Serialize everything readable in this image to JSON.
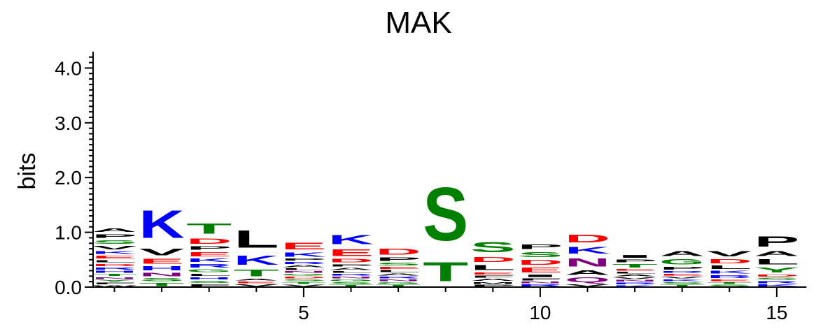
{
  "chart_data": {
    "type": "sequence-logo",
    "title": "MAK",
    "ylabel": "bits",
    "xlabel": "",
    "ylim": [
      0,
      4.3
    ],
    "y_ticks": [
      {
        "value": 0.0,
        "label": "0.0"
      },
      {
        "value": 1.0,
        "label": "1.0"
      },
      {
        "value": 2.0,
        "label": "2.0"
      },
      {
        "value": 3.0,
        "label": "3.0"
      },
      {
        "value": 4.0,
        "label": "4.0"
      }
    ],
    "x_ticks": [
      {
        "value": 5,
        "label": "5"
      },
      {
        "value": 10,
        "label": "10"
      },
      {
        "value": 15,
        "label": "15"
      }
    ],
    "colors": {
      "A": "#000000",
      "C": "#008000",
      "D": "#ff0000",
      "E": "#ff0000",
      "F": "#000000",
      "G": "#008000",
      "H": "#0000ff",
      "I": "#000000",
      "K": "#0000ff",
      "L": "#000000",
      "M": "#000000",
      "N": "#800080",
      "P": "#000000",
      "Q": "#800080",
      "R": "#0000ff",
      "S": "#008000",
      "T": "#008000",
      "V": "#000000",
      "W": "#000000",
      "Y": "#008000"
    },
    "positions": [
      {
        "pos": 1,
        "stack": [
          [
            "W",
            0.04
          ],
          [
            "F",
            0.05
          ],
          [
            "Y",
            0.05
          ],
          [
            "N",
            0.05
          ],
          [
            "T",
            0.06
          ],
          [
            "H",
            0.06
          ],
          [
            "R",
            0.06
          ],
          [
            "D",
            0.07
          ],
          [
            "L",
            0.07
          ],
          [
            "E",
            0.08
          ],
          [
            "K",
            0.08
          ],
          [
            "V",
            0.1
          ],
          [
            "S",
            0.11
          ],
          [
            "P",
            0.11
          ],
          [
            "A",
            0.1
          ]
        ]
      },
      {
        "pos": 2,
        "stack": [
          [
            "T",
            0.09
          ],
          [
            "S",
            0.09
          ],
          [
            "N",
            0.1
          ],
          [
            "H",
            0.12
          ],
          [
            "E",
            0.14
          ],
          [
            "V",
            0.2
          ],
          [
            "K",
            0.81
          ]
        ]
      },
      {
        "pos": 3,
        "stack": [
          [
            "F",
            0.06
          ],
          [
            "S",
            0.07
          ],
          [
            "H",
            0.06
          ],
          [
            "L",
            0.07
          ],
          [
            "G",
            0.08
          ],
          [
            "R",
            0.1
          ],
          [
            "K",
            0.1
          ],
          [
            "E",
            0.12
          ],
          [
            "P",
            0.1
          ],
          [
            "D",
            0.16
          ],
          [
            "T",
            0.3
          ]
        ]
      },
      {
        "pos": 4,
        "stack": [
          [
            "V",
            0.06
          ],
          [
            "E",
            0.05
          ],
          [
            "A",
            0.05
          ],
          [
            "T",
            0.2
          ],
          [
            "K",
            0.26
          ],
          [
            "L",
            0.5
          ]
        ]
      },
      {
        "pos": 5,
        "stack": [
          [
            "V",
            0.05
          ],
          [
            "T",
            0.05
          ],
          [
            "S",
            0.05
          ],
          [
            "D",
            0.05
          ],
          [
            "G",
            0.05
          ],
          [
            "N",
            0.05
          ],
          [
            "L",
            0.05
          ],
          [
            "A",
            0.06
          ],
          [
            "R",
            0.06
          ],
          [
            "P",
            0.06
          ],
          [
            "K",
            0.12
          ],
          [
            "E",
            0.2
          ]
        ]
      },
      {
        "pos": 6,
        "stack": [
          [
            "T",
            0.05
          ],
          [
            "S",
            0.05
          ],
          [
            "G",
            0.05
          ],
          [
            "N",
            0.05
          ],
          [
            "R",
            0.05
          ],
          [
            "L",
            0.05
          ],
          [
            "A",
            0.06
          ],
          [
            "P",
            0.07
          ],
          [
            "D",
            0.1
          ],
          [
            "E",
            0.2
          ],
          [
            "K",
            0.27
          ]
        ]
      },
      {
        "pos": 7,
        "stack": [
          [
            "T",
            0.05
          ],
          [
            "G",
            0.05
          ],
          [
            "N",
            0.05
          ],
          [
            "R",
            0.05
          ],
          [
            "A",
            0.06
          ],
          [
            "L",
            0.06
          ],
          [
            "E",
            0.06
          ],
          [
            "S",
            0.08
          ],
          [
            "P",
            0.1
          ],
          [
            "D",
            0.17
          ]
        ]
      },
      {
        "pos": 8,
        "stack": [
          [
            "T",
            0.55
          ],
          [
            "S",
            1.55
          ]
        ]
      },
      {
        "pos": 9,
        "stack": [
          [
            "P",
            0.05
          ],
          [
            "M",
            0.05
          ],
          [
            "A",
            0.06
          ],
          [
            "F",
            0.06
          ],
          [
            "E",
            0.06
          ],
          [
            "L",
            0.15
          ],
          [
            "D",
            0.15
          ],
          [
            "S",
            0.31
          ]
        ]
      },
      {
        "pos": 10,
        "stack": [
          [
            "R",
            0.06
          ],
          [
            "N",
            0.05
          ],
          [
            "F",
            0.06
          ],
          [
            "I",
            0.07
          ],
          [
            "E",
            0.14
          ],
          [
            "D",
            0.14
          ],
          [
            "S",
            0.15
          ],
          [
            "P",
            0.13
          ]
        ]
      },
      {
        "pos": 11,
        "stack": [
          [
            "V",
            0.06
          ],
          [
            "Q",
            0.14
          ],
          [
            "A",
            0.13
          ],
          [
            "N",
            0.24
          ],
          [
            "K",
            0.2
          ],
          [
            "D",
            0.23
          ]
        ]
      },
      {
        "pos": 12,
        "stack": [
          [
            "K",
            0.04
          ],
          [
            "R",
            0.05
          ],
          [
            "N",
            0.05
          ],
          [
            "V",
            0.05
          ],
          [
            "A",
            0.05
          ],
          [
            "L",
            0.05
          ],
          [
            "E",
            0.05
          ],
          [
            "T",
            0.1
          ],
          [
            "P",
            0.08
          ],
          [
            "I",
            0.08
          ]
        ]
      },
      {
        "pos": 13,
        "stack": [
          [
            "T",
            0.05
          ],
          [
            "S",
            0.05
          ],
          [
            "K",
            0.05
          ],
          [
            "V",
            0.05
          ],
          [
            "E",
            0.05
          ],
          [
            "R",
            0.05
          ],
          [
            "P",
            0.08
          ],
          [
            "G",
            0.16
          ],
          [
            "A",
            0.14
          ]
        ]
      },
      {
        "pos": 14,
        "stack": [
          [
            "S",
            0.05
          ],
          [
            "T",
            0.05
          ],
          [
            "E",
            0.05
          ],
          [
            "R",
            0.08
          ],
          [
            "K",
            0.08
          ],
          [
            "L",
            0.1
          ],
          [
            "D",
            0.12
          ],
          [
            "V",
            0.16
          ]
        ]
      },
      {
        "pos": 15,
        "stack": [
          [
            "K",
            0.06
          ],
          [
            "R",
            0.06
          ],
          [
            "S",
            0.06
          ],
          [
            "D",
            0.06
          ],
          [
            "Y",
            0.14
          ],
          [
            "L",
            0.16
          ],
          [
            "A",
            0.14
          ],
          [
            "P",
            0.3
          ]
        ]
      }
    ]
  }
}
